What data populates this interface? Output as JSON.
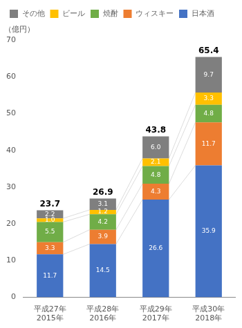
{
  "chart_data": {
    "type": "bar",
    "stacked": true,
    "ylabel": "（億円）",
    "categories": [
      "平成27年\n2015年",
      "平成28年\n2016年",
      "平成29年\n2017年",
      "平成30年\n2018年"
    ],
    "series": [
      {
        "name": "日本酒",
        "color": "#4472C4",
        "values": [
          11.7,
          14.5,
          26.6,
          35.9
        ],
        "value_labels": [
          "11.7",
          "14.5",
          "26.6",
          "35.9"
        ]
      },
      {
        "name": "ウィスキー",
        "color": "#ED7D31",
        "values": [
          3.3,
          3.9,
          4.3,
          11.7
        ],
        "value_labels": [
          "3.3",
          "3.9",
          "4.3",
          "11.7"
        ]
      },
      {
        "name": "焼酎",
        "color": "#70AD47",
        "values": [
          5.5,
          4.2,
          4.8,
          4.8
        ],
        "value_labels": [
          "5.5",
          "4.2",
          "4.8",
          "4.8"
        ]
      },
      {
        "name": "ビール",
        "color": "#FFC000",
        "values": [
          1.0,
          1.2,
          2.1,
          3.3
        ],
        "value_labels": [
          "1.0",
          "1.2",
          "2.1",
          "3.3"
        ]
      },
      {
        "name": "その他",
        "color": "#7F7F7F",
        "values": [
          2.2,
          3.1,
          6.0,
          9.7
        ],
        "value_labels": [
          "2.2",
          "3.1",
          "6.0",
          "9.7"
        ]
      }
    ],
    "totals": [
      23.7,
      26.9,
      43.8,
      65.4
    ],
    "ylim": [
      0,
      70
    ],
    "yticks": [
      0,
      10,
      20,
      30,
      40,
      50,
      60,
      70
    ],
    "grid": false,
    "legend": "upper left",
    "data_labels": true
  }
}
